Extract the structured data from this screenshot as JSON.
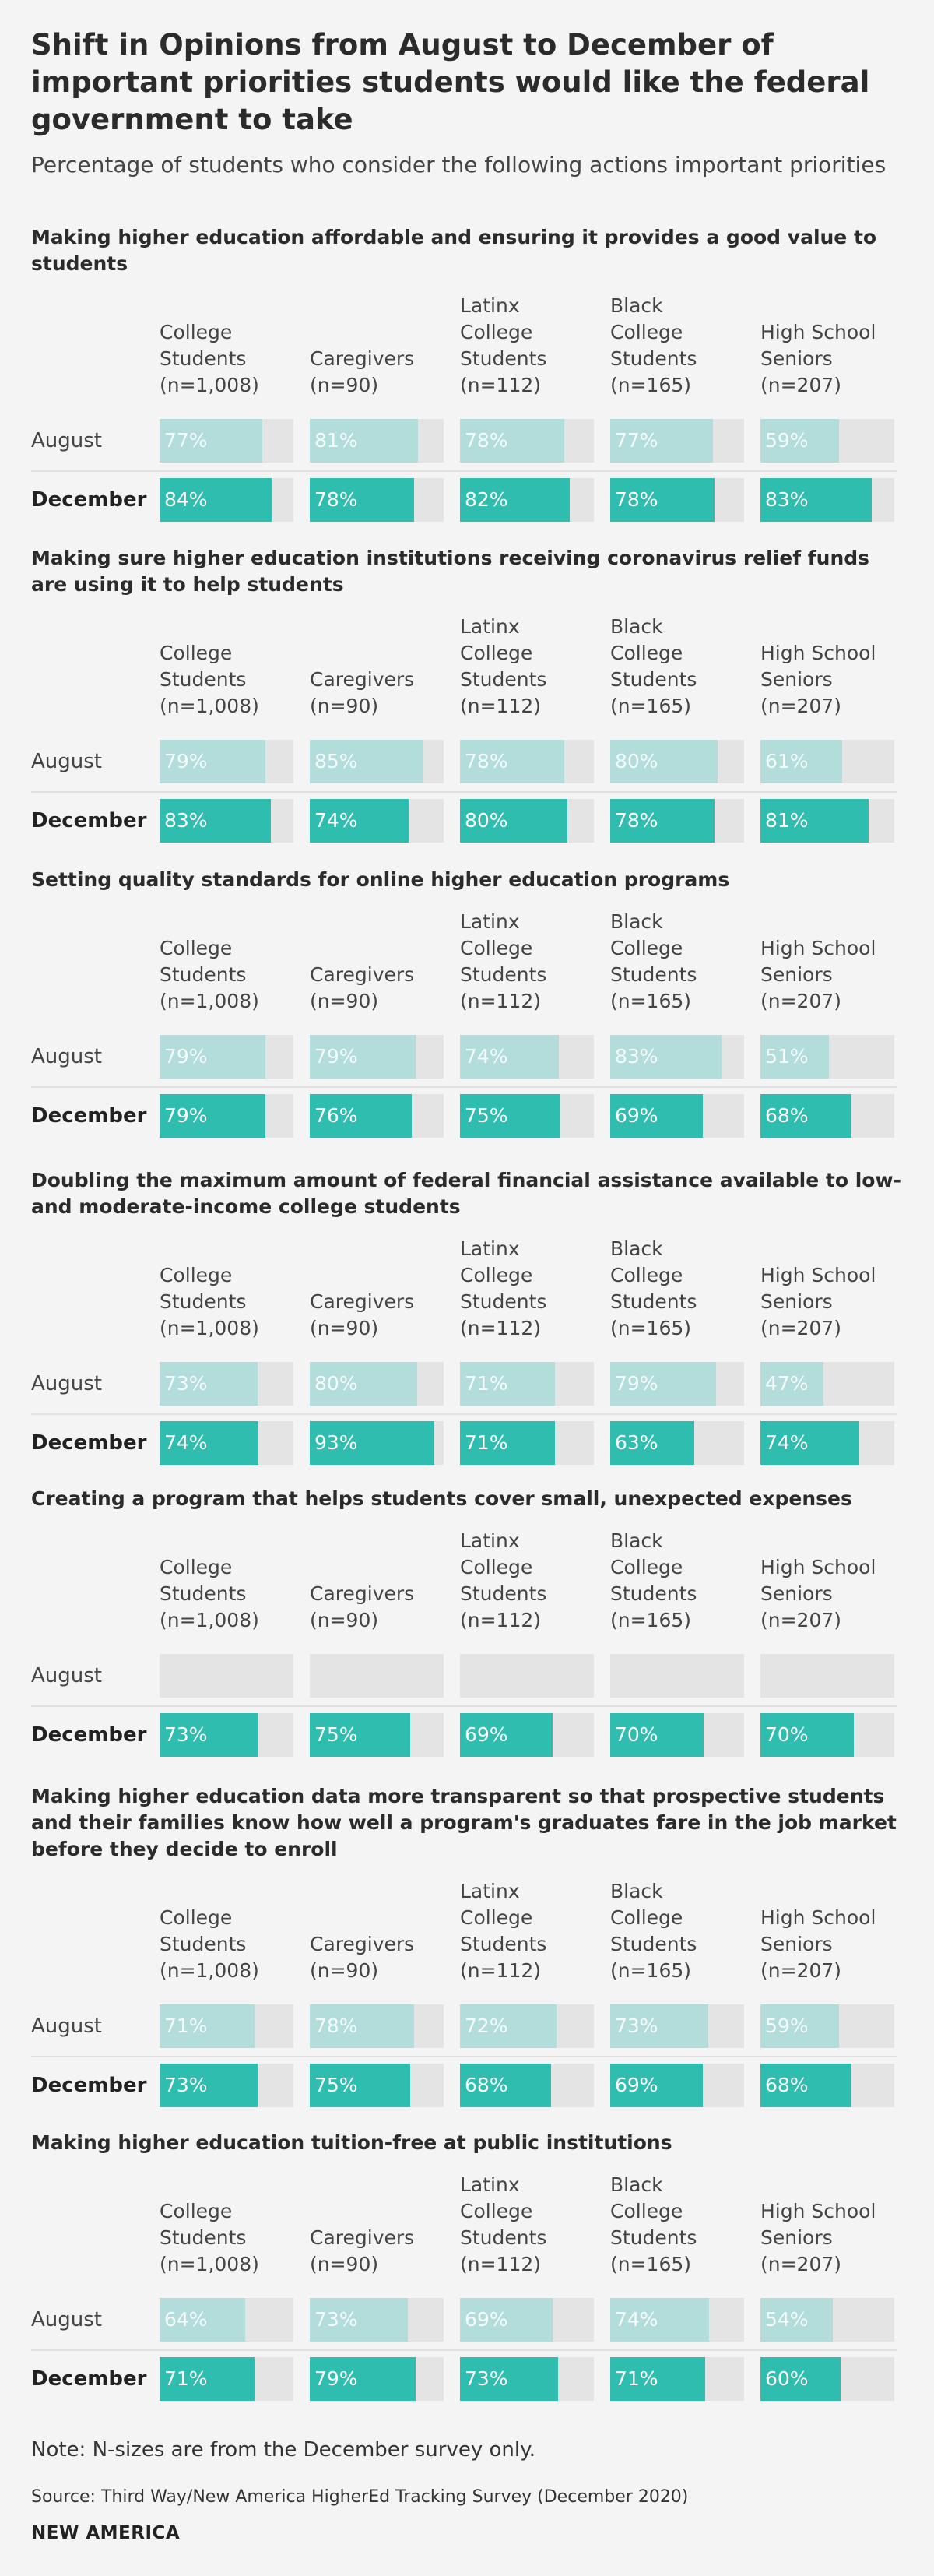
{
  "title": "Shift in Opinions from August to December of important priorities students would like the federal government to take",
  "subtitle": "Percentage of students who consider the following actions important priorities",
  "note": "Note: N-sizes are from the December survey only.",
  "source": "Source: Third Way/New America HigherEd Tracking Survey (December 2020)",
  "brand": "NEW AMERICA",
  "colors": {
    "august": "#b2dddb",
    "december": "#2fbdb0",
    "track": "#e4e4e4"
  },
  "chart_data": {
    "type": "bar",
    "title": "Shift in Opinions from August to December of important priorities students would like the federal government to take",
    "subtitle": "Percentage of students who consider the following actions important priorities",
    "xlabel": "",
    "ylabel": "",
    "ylim": [
      0,
      100
    ],
    "groups": [
      {
        "lines": [
          "College",
          "Students",
          "(n=1,008)"
        ]
      },
      {
        "lines": [
          "Caregivers",
          "(n=90)"
        ]
      },
      {
        "lines": [
          "Latinx",
          "College",
          "Students",
          "(n=112)"
        ]
      },
      {
        "lines": [
          "Black",
          "College",
          "Students",
          "(n=165)"
        ]
      },
      {
        "lines": [
          "High School",
          "Seniors",
          "(n=207)"
        ]
      }
    ],
    "row_labels": [
      "August",
      "December"
    ],
    "panels": [
      {
        "title": "Making higher education affordable and ensuring it provides a good value to students",
        "series": [
          {
            "name": "August",
            "values": [
              77,
              81,
              78,
              77,
              59
            ],
            "labels": [
              "77%",
              "81%",
              "78%",
              "77%",
              "59%"
            ]
          },
          {
            "name": "December",
            "values": [
              84,
              78,
              82,
              78,
              83
            ],
            "labels": [
              "84%",
              "78%",
              "82%",
              "78%",
              "83%"
            ]
          }
        ]
      },
      {
        "title": "Making sure higher education institutions receiving coronavirus relief funds are using it to help students",
        "series": [
          {
            "name": "August",
            "values": [
              79,
              85,
              78,
              80,
              61
            ],
            "labels": [
              "79%",
              "85%",
              "78%",
              "80%",
              "61%"
            ]
          },
          {
            "name": "December",
            "values": [
              83,
              74,
              80,
              78,
              81
            ],
            "labels": [
              "83%",
              "74%",
              "80%",
              "78%",
              "81%"
            ]
          }
        ]
      },
      {
        "title": "Setting quality standards for online higher education programs",
        "series": [
          {
            "name": "August",
            "values": [
              79,
              79,
              74,
              83,
              51
            ],
            "labels": [
              "79%",
              "79%",
              "74%",
              "83%",
              "51%"
            ]
          },
          {
            "name": "December",
            "values": [
              79,
              76,
              75,
              69,
              68
            ],
            "labels": [
              "79%",
              "76%",
              "75%",
              "69%",
              "68%"
            ]
          }
        ]
      },
      {
        "title": "Doubling the maximum amount of federal financial assistance available to low- and moderate-income college students",
        "series": [
          {
            "name": "August",
            "values": [
              73,
              80,
              71,
              79,
              47
            ],
            "labels": [
              "73%",
              "80%",
              "71%",
              "79%",
              "47%"
            ]
          },
          {
            "name": "December",
            "values": [
              74,
              93,
              71,
              63,
              74
            ],
            "labels": [
              "74%",
              "93%",
              "71%",
              "63%",
              "74%"
            ]
          }
        ]
      },
      {
        "title": "Creating a program that helps students cover small, unexpected expenses",
        "series": [
          {
            "name": "August",
            "values": [
              null,
              null,
              null,
              null,
              null
            ],
            "labels": [
              "",
              "",
              "",
              "",
              ""
            ]
          },
          {
            "name": "December",
            "values": [
              73,
              75,
              69,
              70,
              70
            ],
            "labels": [
              "73%",
              "75%",
              "69%",
              "70%",
              "70%"
            ]
          }
        ]
      },
      {
        "title": "Making higher education data more transparent so that prospective students and their families know how well a program's graduates fare in the job market before they decide to enroll",
        "series": [
          {
            "name": "August",
            "values": [
              71,
              78,
              72,
              73,
              59
            ],
            "labels": [
              "71%",
              "78%",
              "72%",
              "73%",
              "59%"
            ]
          },
          {
            "name": "December",
            "values": [
              73,
              75,
              68,
              69,
              68
            ],
            "labels": [
              "73%",
              "75%",
              "68%",
              "69%",
              "68%"
            ]
          }
        ]
      },
      {
        "title": "Making higher education tuition-free at public institutions",
        "series": [
          {
            "name": "August",
            "values": [
              64,
              73,
              69,
              74,
              54
            ],
            "labels": [
              "64%",
              "73%",
              "69%",
              "74%",
              "54%"
            ]
          },
          {
            "name": "December",
            "values": [
              71,
              79,
              73,
              71,
              60
            ],
            "labels": [
              "71%",
              "79%",
              "73%",
              "71%",
              "60%"
            ]
          }
        ]
      }
    ]
  }
}
